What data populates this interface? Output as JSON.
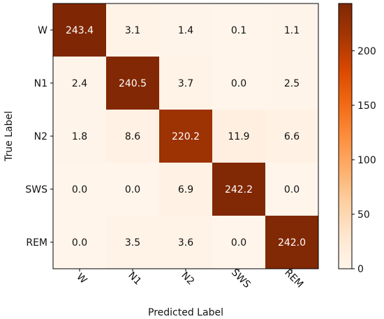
{
  "chart_data": {
    "type": "heatmap",
    "title": "",
    "xlabel": "Predicted Label",
    "ylabel": "True Label",
    "x_categories": [
      "W",
      "N1",
      "N2",
      "SWS",
      "REM"
    ],
    "y_categories": [
      "W",
      "N1",
      "N2",
      "SWS",
      "REM"
    ],
    "values": [
      [
        243.4,
        3.1,
        1.4,
        0.1,
        1.1
      ],
      [
        2.4,
        240.5,
        3.7,
        0.0,
        2.5
      ],
      [
        1.8,
        8.6,
        220.2,
        11.9,
        6.6
      ],
      [
        0.0,
        0.0,
        6.9,
        242.2,
        0.0
      ],
      [
        0.0,
        3.5,
        3.6,
        0.0,
        242.0
      ]
    ],
    "value_labels": [
      [
        "243.4",
        "3.1",
        "1.4",
        "0.1",
        "1.1"
      ],
      [
        "2.4",
        "240.5",
        "3.7",
        "0.0",
        "2.5"
      ],
      [
        "1.8",
        "8.6",
        "220.2",
        "11.9",
        "6.6"
      ],
      [
        "0.0",
        "0.0",
        "6.9",
        "242.2",
        "0.0"
      ],
      [
        "0.0",
        "3.5",
        "3.6",
        "0.0",
        "242.0"
      ]
    ],
    "colormap": "Oranges-Brown",
    "color_min": "#fff5eb",
    "color_max": "#7f2704",
    "vmin": 0,
    "vmax": 243.4,
    "colorbar_ticks": [
      0,
      50,
      100,
      150,
      200
    ],
    "colorbar_tick_labels": [
      "0",
      "50",
      "100",
      "150",
      "200"
    ],
    "x_tick_rotation": "45-degrees"
  }
}
